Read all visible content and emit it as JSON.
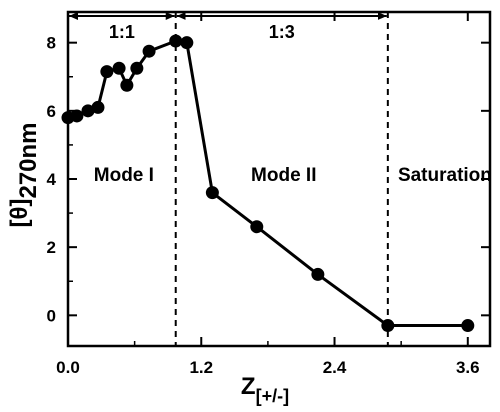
{
  "chart_data": {
    "type": "line",
    "xlabel": {
      "main": "Z",
      "sub": "[+/-]"
    },
    "ylabel": {
      "main": "[θ]",
      "sub": "270nm"
    },
    "xlim": [
      0,
      3.8
    ],
    "ylim": [
      -0.9,
      8.9
    ],
    "xticks": [
      0.0,
      1.2,
      2.4,
      3.6
    ],
    "xtick_labels": [
      "0.0",
      "1.2",
      "2.4",
      "3.6"
    ],
    "yticks": [
      0,
      2,
      4,
      6,
      8
    ],
    "ytick_labels": [
      "0",
      "2",
      "4",
      "6",
      "8"
    ],
    "grid": false,
    "series": [
      {
        "color": "#000000",
        "x": [
          0.0,
          0.08,
          0.18,
          0.27,
          0.35,
          0.46,
          0.53,
          0.62,
          0.73,
          0.97,
          1.07,
          1.3,
          1.7,
          2.25,
          2.88,
          3.6
        ],
        "y": [
          5.8,
          5.85,
          6.0,
          6.1,
          7.15,
          7.25,
          6.75,
          7.25,
          7.75,
          8.05,
          8.0,
          3.6,
          2.6,
          1.2,
          -0.3,
          -0.3
        ]
      }
    ],
    "boundaries": [
      0.97,
      2.88
    ],
    "regions": [
      {
        "ratio": "1:1",
        "mode": "Mode I",
        "x_start": 0.0,
        "x_end": 0.97
      },
      {
        "ratio": "1:3",
        "mode": "Mode II",
        "x_start": 0.97,
        "x_end": 2.88
      },
      {
        "ratio": "",
        "mode": "Saturation",
        "x_start": 2.88,
        "x_end": 3.8
      }
    ]
  }
}
